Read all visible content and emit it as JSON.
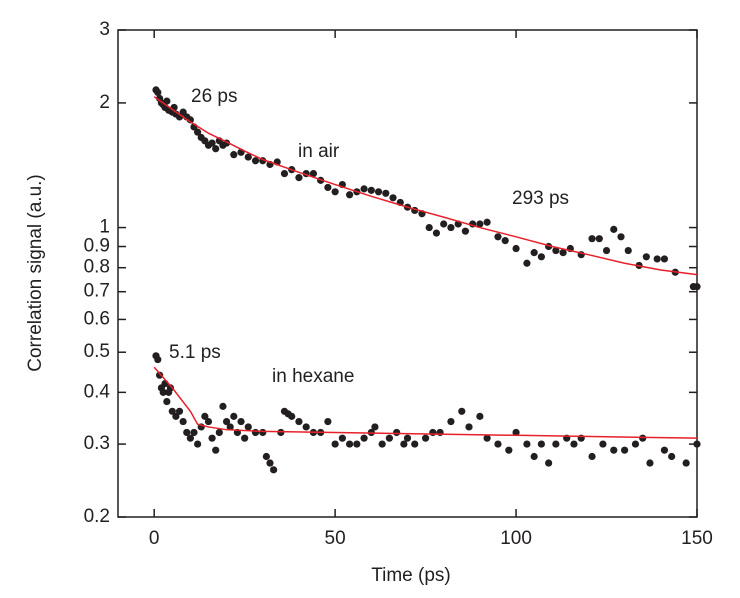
{
  "chart_data": {
    "type": "scatter",
    "xlabel": "Time (ps)",
    "ylabel": "Correlation signal (a.u.)",
    "xlim": [
      -10,
      150
    ],
    "xticks": [
      0,
      50,
      100,
      150
    ],
    "ylim": [
      0.2,
      3
    ],
    "yticks": [
      0.2,
      0.3,
      0.4,
      0.5,
      0.6,
      0.7,
      0.8,
      0.9,
      1,
      2,
      3
    ],
    "log_y": true,
    "annotations": [
      "26 ps",
      "in air",
      "293 ps",
      "5.1 ps",
      "in hexane"
    ],
    "series": [
      {
        "kind": "scatter",
        "color": "#231f20",
        "x": [
          0.5,
          1,
          1.5,
          2,
          2.5,
          3,
          3.5,
          4,
          5,
          5.5,
          6,
          7,
          8,
          9,
          10,
          11,
          12,
          13,
          14,
          15,
          16,
          17,
          18,
          19,
          20,
          22,
          24,
          26,
          28,
          30,
          32,
          34,
          36,
          38,
          40,
          42,
          44,
          46,
          48,
          50,
          52,
          54,
          56,
          58,
          60,
          62,
          64,
          66,
          68,
          70,
          72,
          74,
          76,
          78,
          80,
          82,
          84,
          86,
          88,
          90,
          92,
          95,
          97,
          100,
          103,
          105,
          107,
          109,
          111,
          113,
          115,
          118,
          121,
          123,
          125,
          127,
          129,
          131,
          134,
          136,
          139,
          141,
          144,
          149,
          150
        ],
        "values": [
          2.15,
          2.12,
          2.05,
          2.0,
          1.98,
          1.95,
          2.02,
          1.92,
          1.9,
          1.95,
          1.88,
          1.85,
          1.9,
          1.85,
          1.82,
          1.75,
          1.7,
          1.65,
          1.62,
          1.58,
          1.6,
          1.55,
          1.62,
          1.58,
          1.6,
          1.5,
          1.52,
          1.48,
          1.45,
          1.45,
          1.42,
          1.44,
          1.35,
          1.38,
          1.32,
          1.35,
          1.35,
          1.3,
          1.25,
          1.22,
          1.27,
          1.2,
          1.22,
          1.24,
          1.23,
          1.22,
          1.21,
          1.18,
          1.15,
          1.12,
          1.1,
          1.08,
          1.0,
          0.97,
          1.02,
          1.0,
          1.02,
          0.98,
          1.02,
          1.02,
          1.03,
          0.95,
          0.93,
          0.89,
          0.82,
          0.87,
          0.85,
          0.9,
          0.88,
          0.87,
          0.89,
          0.86,
          0.94,
          0.94,
          0.88,
          0.99,
          0.95,
          0.88,
          0.81,
          0.85,
          0.84,
          0.84,
          0.78,
          0.72,
          0.72
        ]
      },
      {
        "kind": "scatter",
        "color": "#231f20",
        "x": [
          0.5,
          1,
          1.5,
          2,
          2.5,
          3,
          3.5,
          4,
          4.5,
          5,
          6,
          7,
          8,
          9,
          10,
          11,
          12,
          13,
          14,
          15,
          16,
          17,
          18,
          19,
          20,
          21,
          22,
          23,
          24,
          25,
          26,
          28,
          30,
          31,
          32,
          33,
          35,
          36,
          37,
          38,
          40,
          42,
          44,
          46,
          48,
          50,
          52,
          54,
          56,
          58,
          60,
          61,
          63,
          65,
          67,
          69,
          70,
          72,
          75,
          77,
          79,
          82,
          85,
          87,
          90,
          92,
          95,
          98,
          100,
          103,
          105,
          107,
          109,
          111,
          114,
          116,
          118,
          121,
          124,
          127,
          130,
          133,
          135,
          137,
          141,
          143,
          147,
          150
        ],
        "values": [
          0.49,
          0.48,
          0.44,
          0.41,
          0.4,
          0.42,
          0.38,
          0.4,
          0.41,
          0.36,
          0.35,
          0.36,
          0.34,
          0.32,
          0.31,
          0.32,
          0.3,
          0.33,
          0.35,
          0.34,
          0.31,
          0.29,
          0.32,
          0.37,
          0.34,
          0.33,
          0.35,
          0.32,
          0.34,
          0.31,
          0.33,
          0.32,
          0.32,
          0.28,
          0.27,
          0.26,
          0.32,
          0.36,
          0.355,
          0.35,
          0.34,
          0.33,
          0.32,
          0.32,
          0.34,
          0.3,
          0.31,
          0.3,
          0.3,
          0.31,
          0.32,
          0.33,
          0.3,
          0.31,
          0.32,
          0.3,
          0.31,
          0.3,
          0.31,
          0.32,
          0.32,
          0.34,
          0.36,
          0.33,
          0.35,
          0.31,
          0.3,
          0.29,
          0.32,
          0.3,
          0.28,
          0.3,
          0.27,
          0.3,
          0.31,
          0.3,
          0.31,
          0.28,
          0.3,
          0.29,
          0.29,
          0.3,
          0.31,
          0.27,
          0.29,
          0.28,
          0.27,
          0.3
        ]
      },
      {
        "kind": "line",
        "color": "#e8202a",
        "x": [
          0,
          5,
          10,
          15,
          20,
          25,
          30,
          40,
          50,
          60,
          70,
          80,
          90,
          100,
          110,
          120,
          130,
          140,
          150
        ],
        "values": [
          2.07,
          1.93,
          1.8,
          1.69,
          1.61,
          1.53,
          1.46,
          1.36,
          1.27,
          1.19,
          1.12,
          1.06,
          1.0,
          0.95,
          0.9,
          0.86,
          0.82,
          0.79,
          0.77
        ]
      },
      {
        "kind": "line",
        "color": "#e8202a",
        "x": [
          0,
          5,
          10,
          12,
          15,
          20,
          30,
          50,
          100,
          150
        ],
        "values": [
          0.46,
          0.41,
          0.36,
          0.335,
          0.33,
          0.325,
          0.322,
          0.32,
          0.315,
          0.31
        ]
      }
    ]
  }
}
